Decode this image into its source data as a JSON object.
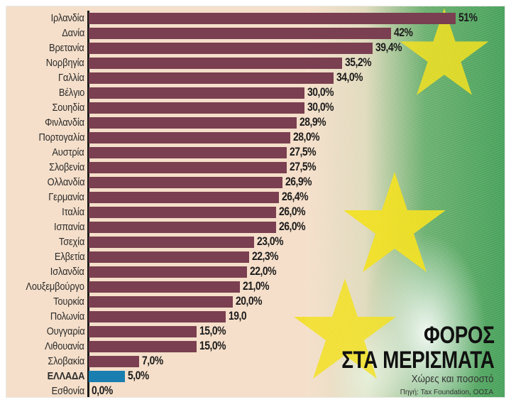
{
  "title": {
    "line1": "ΦΟΡΟΣ",
    "line2": "ΣΤΑ ΜΕΡΙΣΜΑΤΑ",
    "subtitle": "Χώρες και ποσοστό",
    "source": "Πηγή: Tax Foundation, ΟΟΣΑ"
  },
  "colors": {
    "bar": "#7a3f50",
    "highlight": "#1a7fb0",
    "background": "#f5dfca",
    "stars": "#f2df1a",
    "green": "#2e9a4e"
  },
  "chart_data": {
    "type": "bar",
    "orientation": "horizontal",
    "title": "ΦΟΡΟΣ ΣΤΑ ΜΕΡΙΣΜΑΤΑ",
    "subtitle": "Χώρες και ποσοστό",
    "source": "Πηγή: Tax Foundation, ΟΟΣΑ",
    "xlabel": "",
    "ylabel": "",
    "grid": false,
    "legend": null,
    "highlighted_category": "ΕΛΛΑΔΑ",
    "categories": [
      "Ιρλανδία",
      "Δανία",
      "Βρετανία",
      "Νορβηγία",
      "Γαλλία",
      "Βέλγιο",
      "Σουηδία",
      "Φινλανδία",
      "Πορτογαλία",
      "Αυστρία",
      "Σλοβενία",
      "Ολλανδία",
      "Γερμανία",
      "Ιταλία",
      "Ισπανία",
      "Τσεχία",
      "Ελβετία",
      "Ισλανδία",
      "Λουξεμβούργο",
      "Τουρκία",
      "Πολωνία",
      "Ουγγαρία",
      "Λιθουανία",
      "Σλοβακία",
      "ΕΛΛΑΔΑ",
      "Εσθονία"
    ],
    "values": [
      51,
      42,
      39.4,
      35.2,
      34.0,
      30.0,
      30.0,
      28.9,
      28.0,
      27.5,
      27.5,
      26.9,
      26.4,
      26.0,
      26.0,
      23.0,
      22.3,
      22.0,
      21.0,
      20.0,
      19.0,
      15.0,
      15.0,
      7.0,
      5.0,
      0.0
    ],
    "value_labels": [
      "51%",
      "42%",
      "39,4%",
      "35,2%",
      "34,0%",
      "30,0%",
      "30,0%",
      "28,9%",
      "28,0%",
      "27,5%",
      "27,5%",
      "26,9%",
      "26,4%",
      "26,0%",
      "26,0%",
      "23,0%",
      "22,3%",
      "22,0%",
      "21,0%",
      "20,0%",
      "19,0",
      "15,0%",
      "15,0%",
      "7,0%",
      "5,0%",
      "0,0%"
    ],
    "xlim": [
      0,
      55
    ]
  },
  "rows": [
    {
      "label": "Ιρλανδία",
      "value": 51,
      "text": "51%"
    },
    {
      "label": "Δανία",
      "value": 42,
      "text": "42%"
    },
    {
      "label": "Βρετανία",
      "value": 39.4,
      "text": "39,4%"
    },
    {
      "label": "Νορβηγία",
      "value": 35.2,
      "text": "35,2%"
    },
    {
      "label": "Γαλλία",
      "value": 34.0,
      "text": "34,0%"
    },
    {
      "label": "Βέλγιο",
      "value": 30.0,
      "text": "30,0%"
    },
    {
      "label": "Σουηδία",
      "value": 30.0,
      "text": "30,0%"
    },
    {
      "label": "Φινλανδία",
      "value": 28.9,
      "text": "28,9%"
    },
    {
      "label": "Πορτογαλία",
      "value": 28.0,
      "text": "28,0%"
    },
    {
      "label": "Αυστρία",
      "value": 27.5,
      "text": "27,5%"
    },
    {
      "label": "Σλοβενία",
      "value": 27.5,
      "text": "27,5%"
    },
    {
      "label": "Ολλανδία",
      "value": 26.9,
      "text": "26,9%"
    },
    {
      "label": "Γερμανία",
      "value": 26.4,
      "text": "26,4%"
    },
    {
      "label": "Ιταλία",
      "value": 26.0,
      "text": "26,0%"
    },
    {
      "label": "Ισπανία",
      "value": 26.0,
      "text": "26,0%"
    },
    {
      "label": "Τσεχία",
      "value": 23.0,
      "text": "23,0%"
    },
    {
      "label": "Ελβετία",
      "value": 22.3,
      "text": "22,3%"
    },
    {
      "label": "Ισλανδία",
      "value": 22.0,
      "text": "22,0%"
    },
    {
      "label": "Λουξεμβούργο",
      "value": 21.0,
      "text": "21,0%"
    },
    {
      "label": "Τουρκία",
      "value": 20.0,
      "text": "20,0%"
    },
    {
      "label": "Πολωνία",
      "value": 19.0,
      "text": "19,0"
    },
    {
      "label": "Ουγγαρία",
      "value": 15.0,
      "text": "15,0%"
    },
    {
      "label": "Λιθουανία",
      "value": 15.0,
      "text": "15,0%"
    },
    {
      "label": "Σλοβακία",
      "value": 7.0,
      "text": "7,0%"
    },
    {
      "label": "ΕΛΛΑΔΑ",
      "value": 5.0,
      "text": "5,0%",
      "highlight": true
    },
    {
      "label": "Εσθονία",
      "value": 0.0,
      "text": "0,0%"
    }
  ]
}
